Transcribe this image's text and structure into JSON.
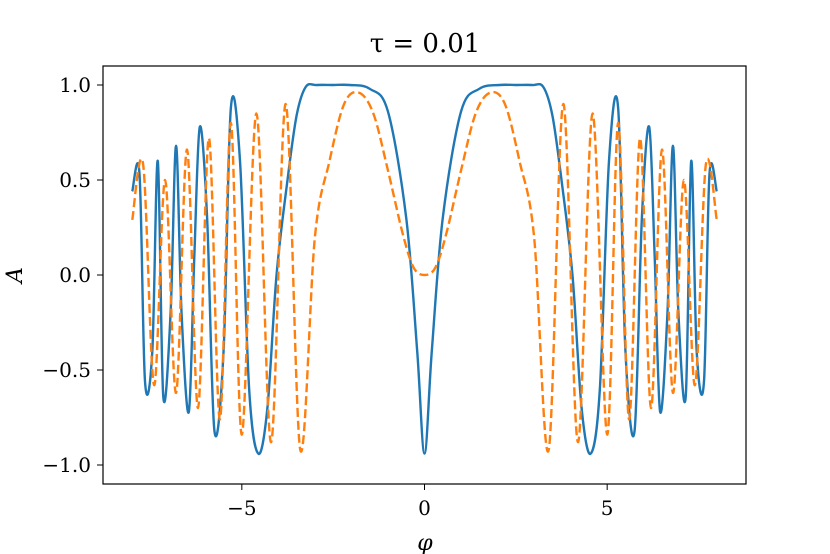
{
  "chart_data": {
    "type": "line",
    "title": "τ = 0.01",
    "xlabel": "φ",
    "ylabel": "A",
    "xlim": [
      -8.8,
      8.8
    ],
    "ylim": [
      -1.1,
      1.1
    ],
    "x_ticks": [
      {
        "value": -5,
        "label": "−5"
      },
      {
        "value": 0,
        "label": "0"
      },
      {
        "value": 5,
        "label": "5"
      }
    ],
    "y_ticks": [
      {
        "value": 1.0,
        "label": "1.0"
      },
      {
        "value": 0.5,
        "label": "0.5"
      },
      {
        "value": 0.0,
        "label": "0.0"
      },
      {
        "value": -0.5,
        "label": "−0.5"
      },
      {
        "value": -1.0,
        "label": "−1.0"
      }
    ],
    "grid": false,
    "legend": "none",
    "series": [
      {
        "color": "#1f77b4",
        "style": "solid",
        "x": [
          -8,
          -7.8,
          -7.65,
          -7.45,
          -7.3,
          -7.15,
          -6.95,
          -6.8,
          -6.65,
          -6.45,
          -6.3,
          -6.15,
          -5.95,
          -5.75,
          -5.5,
          -5.3,
          -5.05,
          -4.8,
          -4.55,
          -4.3,
          -4.05,
          -3.75,
          -3.5,
          -3.25,
          -2.95,
          -2.5,
          -2.05,
          -1.5,
          -1.0,
          -0.5,
          -0.2,
          0,
          0.2,
          0.5,
          1.0,
          1.5,
          2.05,
          2.5,
          2.95,
          3.25,
          3.5,
          3.75,
          4.05,
          4.3,
          4.55,
          4.8,
          5.05,
          5.3,
          5.5,
          5.75,
          5.95,
          6.15,
          6.3,
          6.45,
          6.65,
          6.8,
          6.95,
          7.15,
          7.3,
          7.45,
          7.65,
          7.8,
          8
        ],
        "y": [
          0.44,
          0.53,
          -0.56,
          -0.4,
          0.6,
          -0.64,
          -0.2,
          0.68,
          -0.2,
          -0.72,
          0.1,
          0.78,
          0.3,
          -0.82,
          -0.4,
          0.88,
          0.6,
          -0.6,
          -0.94,
          -0.7,
          0.0,
          0.5,
          0.84,
          0.99,
          1.0,
          1.0,
          1.0,
          0.98,
          0.86,
          0.3,
          -0.4,
          -0.94,
          -0.4,
          0.3,
          0.86,
          0.98,
          1.0,
          1.0,
          1.0,
          0.99,
          0.84,
          0.5,
          0.0,
          -0.7,
          -0.94,
          -0.6,
          0.6,
          0.88,
          -0.4,
          -0.82,
          0.3,
          0.78,
          0.1,
          -0.72,
          -0.2,
          0.68,
          -0.2,
          -0.64,
          0.6,
          -0.4,
          -0.56,
          0.53,
          0.44
        ]
      },
      {
        "color": "#ff7f0e",
        "style": "dashed",
        "x": [
          -8,
          -7.7,
          -7.4,
          -7.1,
          -6.8,
          -6.5,
          -6.2,
          -5.9,
          -5.6,
          -5.3,
          -5.0,
          -4.6,
          -4.2,
          -3.8,
          -3.4,
          -3.0,
          -2.6,
          -2.2,
          -1.8,
          -1.4,
          -1.0,
          -0.6,
          -0.3,
          0,
          0.3,
          0.6,
          1.0,
          1.4,
          1.8,
          2.2,
          2.6,
          3.0,
          3.4,
          3.8,
          4.2,
          4.6,
          5.0,
          5.3,
          5.6,
          5.9,
          6.2,
          6.5,
          6.8,
          7.1,
          7.4,
          7.7,
          8
        ],
        "y": [
          0.29,
          0.58,
          -0.58,
          0.5,
          -0.62,
          0.66,
          -0.7,
          0.72,
          -0.76,
          0.8,
          -0.84,
          0.85,
          -0.88,
          0.9,
          -0.92,
          0.2,
          0.6,
          0.9,
          0.96,
          0.85,
          0.55,
          0.22,
          0.04,
          0.0,
          0.04,
          0.22,
          0.55,
          0.85,
          0.96,
          0.9,
          0.6,
          0.2,
          -0.92,
          0.9,
          -0.88,
          0.85,
          -0.84,
          0.8,
          -0.76,
          0.72,
          -0.7,
          0.66,
          -0.62,
          0.5,
          -0.58,
          0.58,
          0.29
        ]
      }
    ]
  }
}
